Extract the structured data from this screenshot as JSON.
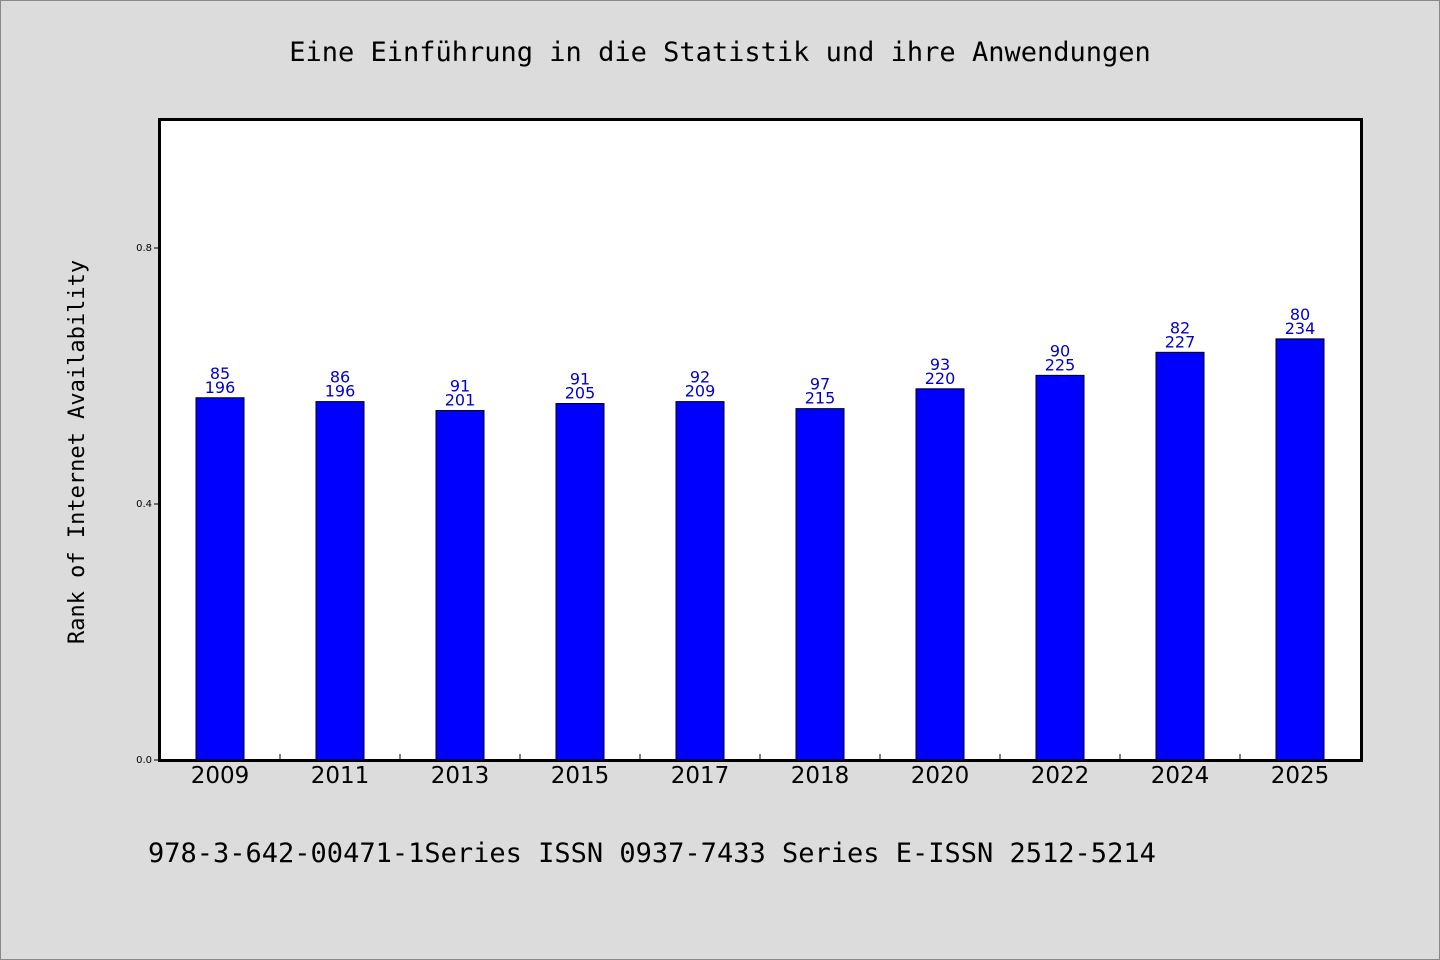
{
  "chart_data": {
    "type": "bar",
    "title": "Eine Einführung in die Statistik und ihre Anwendungen",
    "xlabel": "",
    "ylabel": "Rank of Internet Availability",
    "footer": "978-3-642-00471-1Series ISSN 0937-7433 Series E-ISSN 2512-5214",
    "categories": [
      "2009",
      "2011",
      "2013",
      "2015",
      "2017",
      "2018",
      "2020",
      "2022",
      "2024",
      "2025"
    ],
    "values": [
      0.566,
      0.56,
      0.546,
      0.557,
      0.56,
      0.549,
      0.58,
      0.601,
      0.637,
      0.658
    ],
    "data_labels_top": [
      "85",
      "86",
      "91",
      "91",
      "92",
      "97",
      "93",
      "90",
      "82",
      "80"
    ],
    "data_labels_bottom": [
      "196",
      "196",
      "201",
      "205",
      "209",
      "215",
      "220",
      "225",
      "227",
      "234"
    ],
    "yticks": [
      "0.0",
      "0.4",
      "0.8"
    ],
    "ylim": [
      0,
      1.0
    ],
    "grid": false,
    "legend": "none",
    "bar_color": "#0000ff",
    "label_color": "#0000cc",
    "background_color": "#dcdcdc",
    "plot_background": "#ffffff"
  }
}
